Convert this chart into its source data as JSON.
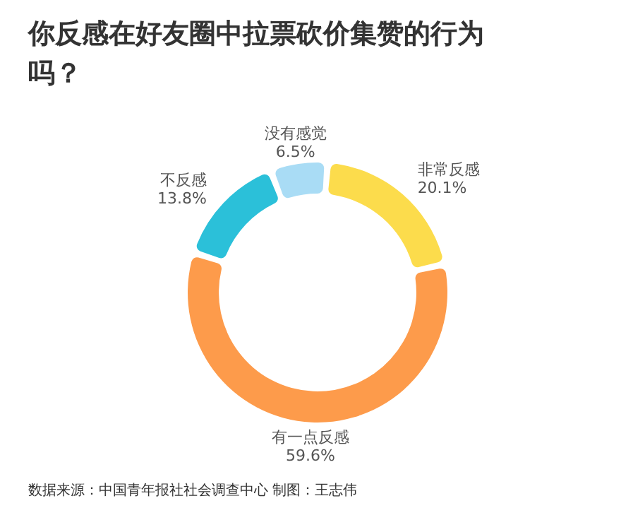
{
  "chart_data": {
    "type": "donut",
    "title": "你反感在好友圈中拉票砍价集赞的行为吗？",
    "categories": [
      "非常反感",
      "有一点反感",
      "不反感",
      "没有感觉"
    ],
    "values": [
      20.1,
      59.6,
      13.8,
      6.5
    ],
    "colors": [
      "#fcdc4c",
      "#fd9b4b",
      "#2bc0d9",
      "#a9dcf5"
    ],
    "value_labels": [
      "20.1%",
      "59.6%",
      "13.8%",
      "6.5%"
    ],
    "annotations": [
      "数据来源：中国青年报社社会调查中心 制图：王志伟"
    ]
  }
}
